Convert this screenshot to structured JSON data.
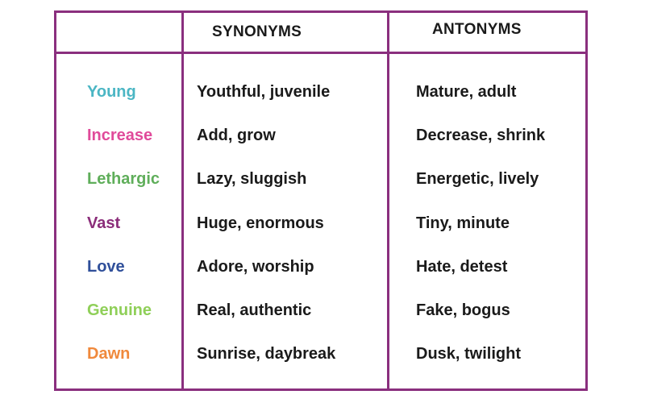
{
  "headers": {
    "synonyms": "SYNONYMS",
    "antonyms": "ANTONYMS"
  },
  "rows": [
    {
      "word": "Young",
      "color": "#4bb6c4",
      "synonyms": "Youthful, juvenile",
      "antonyms": "Mature, adult"
    },
    {
      "word": "Increase",
      "color": "#e04a9a",
      "synonyms": "Add, grow",
      "antonyms": "Decrease, shrink"
    },
    {
      "word": "Lethargic",
      "color": "#5fae5a",
      "synonyms": "Lazy, sluggish",
      "antonyms": "Energetic, lively"
    },
    {
      "word": "Vast",
      "color": "#8b2d7a",
      "synonyms": "Huge, enormous",
      "antonyms": "Tiny, minute"
    },
    {
      "word": "Love",
      "color": "#2f4f9a",
      "synonyms": "Adore, worship",
      "antonyms": "Hate, detest"
    },
    {
      "word": "Genuine",
      "color": "#8fcf58",
      "synonyms": "Real, authentic",
      "antonyms": "Fake, bogus"
    },
    {
      "word": "Dawn",
      "color": "#f0893c",
      "synonyms": "Sunrise, daybreak",
      "antonyms": "Dusk, twilight"
    }
  ]
}
